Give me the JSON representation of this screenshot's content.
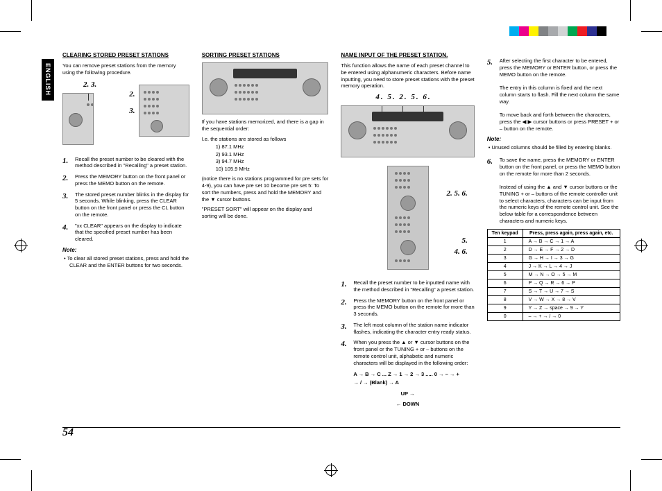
{
  "lang_tab": "ENGLISH",
  "page_number": "54",
  "color_bar": [
    "#00aeef",
    "#ec008c",
    "#fff200",
    "#808285",
    "#a7a9ac",
    "#d1d3d4",
    "#00a651",
    "#ed1c24",
    "#2e3192",
    "#000000"
  ],
  "col1": {
    "title": "CLEARING STORED PRESET STATIONS",
    "intro": "You can remove preset stations from the memory using the following procedure.",
    "callouts_top": "2.  3.",
    "callouts_side_a": "2.",
    "callouts_side_b": "3.",
    "steps": [
      "Recall the preset number to be cleared with the method described in \"Recalling\" a preset station.",
      "Press the MEMORY button on the front panel or press the MEMO button on the remote.",
      "The stored preset number blinks in the display for 5 seconds. While blinking, press the CLEAR button on the front panel or press the CL button on the remote.",
      "\"xx CLEAR\" appears on the display to indicate that the specified preset number has been cleared."
    ],
    "note": "To clear all stored preset stations, press and hold the CLEAR and the ENTER buttons for two seconds."
  },
  "col2": {
    "title": "SORTING PRESET STATIONS",
    "after_diagram": "If you have stations memorized, and there is a gap in the sequential order:",
    "ie_line": "I.e. the stations are stored as follows",
    "freqs": [
      "1)   87.1 MHz",
      "2)   93.1 MHz",
      "3)   94.7 MHz",
      "10)  105.9 MHz"
    ],
    "notice": "(notice there is no stations programmed for pre sets for 4-9), you can have pre set 10 become pre set 5: To sort the numbers, press and hold the MEMORY and the ▼ cursor buttons.",
    "result": "\"PRESET SORT\" will appear on the display and sorting will be done."
  },
  "col3": {
    "title": "NAME INPUT OF THE PRESET STATION.",
    "intro": "This function allows the name of each preset channel to be entered using alphanumeric characters. Before name inputting, you need to store preset stations with the preset memory operation.",
    "callouts_panel": "4.    5.   2. 5. 6.",
    "callouts_remote_a": "2. 5. 6.",
    "callouts_remote_b": "5.",
    "callouts_remote_c": "4. 6.",
    "steps": [
      "Recall the preset number to be inputted name with the method described in \"Recalling\" a preset station.",
      "Press the MEMORY button on the front panel or press the MEMO button on the remote for more than 3 seconds.",
      "The left most column of the station name indicator flashes, indicating the character entry ready status.",
      "When you press the ▲ or ▼ cursor buttons on the front panel or the TUNING + or – buttons on the remote control unit, alphabetic and numeric characters will be displayed in the following order:"
    ],
    "char_seq": "A → B → C ... Z → 1 → 2 → 3 ..... 0 → – → +\n→ / → (Blank) → A",
    "up": "UP →",
    "down": "← DOWN"
  },
  "col4": {
    "step5": "After selecting the first character to be entered, press the MEMORY or ENTER button, or press the MEMO button on the remote.",
    "step5_p2": "The entry in this column is fixed and the next column starts to flash. Fill the next column the same way.",
    "step5_p3": "To move back and forth between the characters, press the ◀ ▶ cursor buttons or press PRESET + or – button on the remote.",
    "note1": "Unused columns should be filled by entering blanks.",
    "step6": "To save the name, press the MEMORY or ENTER button on the front panel, or press the MEMO button on the remote for more than 2 seconds.",
    "step6_p2": "Instead of using the ▲ and ▼ cursor buttons or the TUNING + or – buttons of the remote controller unit to select characters, characters can be input from the numeric keys of the remote control unit. See the below table for a correspondence between characters and numeric keys.",
    "table_head_a": "Ten keypad",
    "table_head_b": "Press, press again, press again, etc.",
    "table_rows": [
      [
        "1",
        "A → B → C → 1 → A"
      ],
      [
        "2",
        "D → E → F → 2 → D"
      ],
      [
        "3",
        "G → H → I → 3 → G"
      ],
      [
        "4",
        "J → K → L → 4 → J"
      ],
      [
        "5",
        "M → N → O → 5 → M"
      ],
      [
        "6",
        "P → Q → R → 6 → P"
      ],
      [
        "7",
        "S → T → U → 7 → S"
      ],
      [
        "8",
        "V → W → X → 8 → V"
      ],
      [
        "9",
        "Y → Z → space → 9 → Y"
      ],
      [
        "0",
        "– → + → / → 0"
      ]
    ]
  }
}
